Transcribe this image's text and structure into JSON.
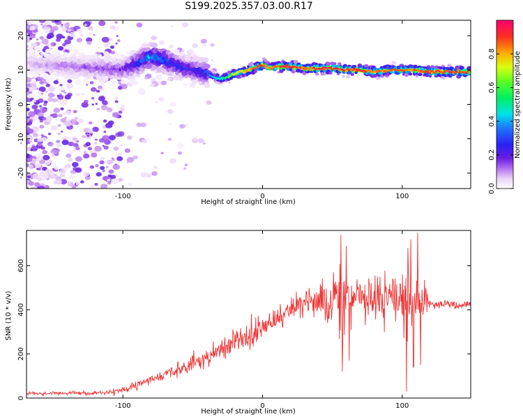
{
  "title": "S199.2025.357.03.00.R17",
  "chart_data": [
    {
      "type": "heatmap",
      "title": "S199.2025.357.03.00.R17",
      "xlabel": "Height of straight line (km)",
      "ylabel": "Frequency (Hz)",
      "xlim": [
        -169,
        149
      ],
      "ylim": [
        -24.5,
        24.5
      ],
      "x_ticks": [
        "-100",
        "0",
        "100"
      ],
      "y_ticks": [
        "20",
        "10",
        "0",
        "-10",
        "-20"
      ],
      "grid": false,
      "colorbar": {
        "label": "Normalized spectral amplitude",
        "range": [
          0,
          1
        ],
        "ticks": [
          "0.0",
          "0.2",
          "0.4",
          "0.6",
          "0.8"
        ]
      },
      "ridge": {
        "x": [
          -169,
          -100,
          -90,
          -80,
          -70,
          -60,
          -50,
          -40,
          -35,
          -30,
          -25,
          -20,
          -10,
          0,
          5,
          10,
          20,
          30,
          40,
          50,
          60,
          70,
          80,
          90,
          100,
          110,
          120,
          130,
          149
        ],
        "frequency": [
          12,
          10,
          12,
          14,
          13,
          11,
          10,
          9,
          8,
          7.5,
          8,
          9,
          10,
          11.5,
          10.5,
          11,
          11,
          10.5,
          10.5,
          10.5,
          10,
          10,
          9.5,
          10,
          10,
          10,
          9.5,
          9.5,
          9.5
        ],
        "peak_amplitude": [
          0.1,
          0.2,
          0.35,
          0.45,
          0.4,
          0.3,
          0.3,
          0.35,
          0.45,
          0.5,
          0.6,
          0.75,
          0.85,
          0.95,
          0.85,
          0.9,
          0.95,
          0.9,
          0.95,
          0.95,
          0.95,
          0.95,
          0.9,
          0.9,
          0.9,
          0.9,
          0.95,
          0.95,
          0.95
        ]
      }
    },
    {
      "type": "line",
      "xlabel": "Height of straight line (km)",
      "ylabel": "SNR (10 * v/v)",
      "xlim": [
        -169,
        149
      ],
      "ylim": [
        0,
        760
      ],
      "x_ticks": [
        "-100",
        "0",
        "100"
      ],
      "y_ticks": [
        "0",
        "200",
        "400",
        "600"
      ],
      "grid": false,
      "series": [
        {
          "color": "#ee3333",
          "x": [
            -169,
            -150,
            -130,
            -110,
            -100,
            -90,
            -80,
            -70,
            -60,
            -50,
            -40,
            -30,
            -20,
            -10,
            0,
            10,
            20,
            30,
            40,
            50,
            60,
            70,
            80,
            90,
            100,
            110,
            120,
            130,
            140,
            149
          ],
          "values": [
            20,
            22,
            22,
            25,
            35,
            55,
            80,
            105,
            130,
            160,
            190,
            215,
            250,
            280,
            320,
            360,
            400,
            430,
            440,
            440,
            440,
            445,
            445,
            440,
            430,
            435,
            425,
            425,
            420,
            425
          ]
        }
      ]
    }
  ]
}
